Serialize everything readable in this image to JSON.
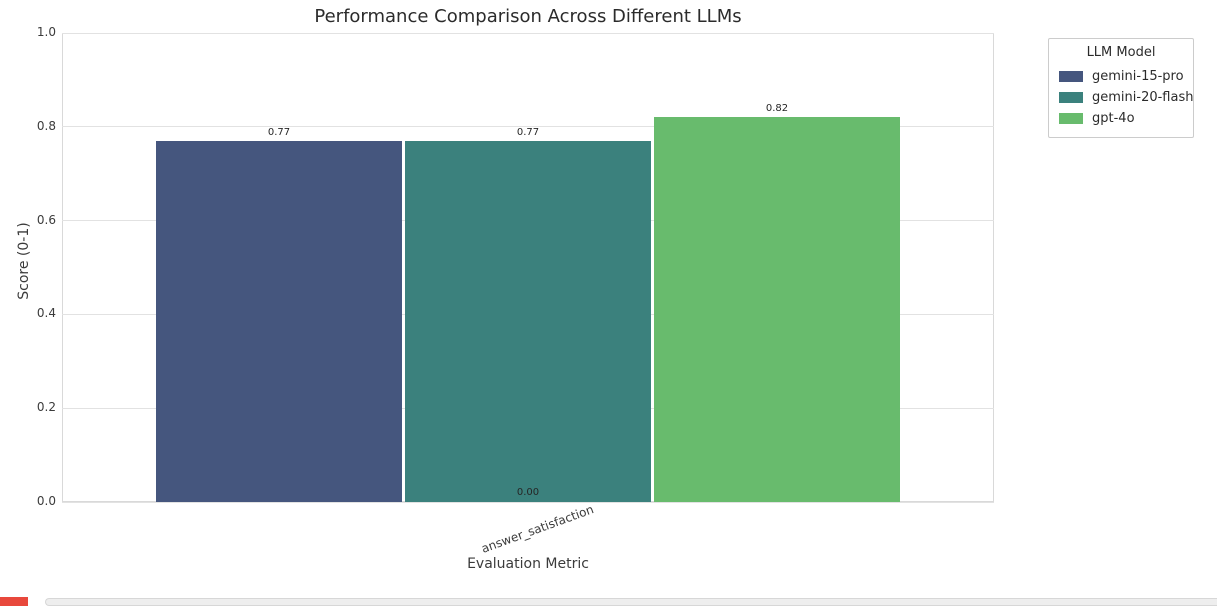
{
  "page": {
    "background_color": "#ffffff"
  },
  "chart_data": {
    "type": "bar",
    "title": "Performance Comparison Across Different LLMs",
    "xlabel": "Evaluation Metric",
    "ylabel": "Score (0-1)",
    "categories": [
      "answer_satisfaction"
    ],
    "series": [
      {
        "name": "gemini-15-pro",
        "values": [
          0.77
        ],
        "color": "#45567e",
        "bar_label": "0.77"
      },
      {
        "name": "gemini-20-flash",
        "values": [
          0.77
        ],
        "color": "#3b817d",
        "bar_label": "0.77"
      },
      {
        "name": "gpt-4o",
        "values": [
          0.82
        ],
        "color": "#68bb6d",
        "bar_label": "0.82"
      }
    ],
    "baseline_label": {
      "text": "0.00",
      "value": 0.0
    },
    "ylim": [
      0.0,
      1.0
    ],
    "yticks": [
      "0.0",
      "0.2",
      "0.4",
      "0.6",
      "0.8",
      "1.0"
    ],
    "grid": true,
    "grid_color": "#e2e2e2",
    "legend": {
      "title": "LLM Model",
      "position": "upper right, outside plot"
    }
  },
  "bottom_bar": {
    "type": "horizontal-scrollbar",
    "track_color": "#eeeeee",
    "indicator_color": "#e8483c"
  }
}
